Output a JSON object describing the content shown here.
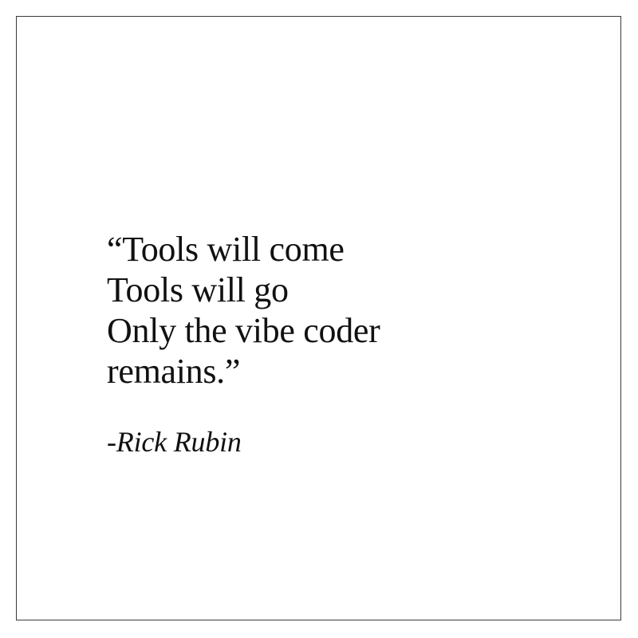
{
  "quote": {
    "lines": [
      "“Tools will come",
      "Tools will go",
      "Only the vibe coder",
      "remains.”"
    ]
  },
  "attribution": "-Rick Rubin",
  "colors": {
    "background": "#ffffff",
    "text": "#111111",
    "border": "#3a3a3a"
  }
}
